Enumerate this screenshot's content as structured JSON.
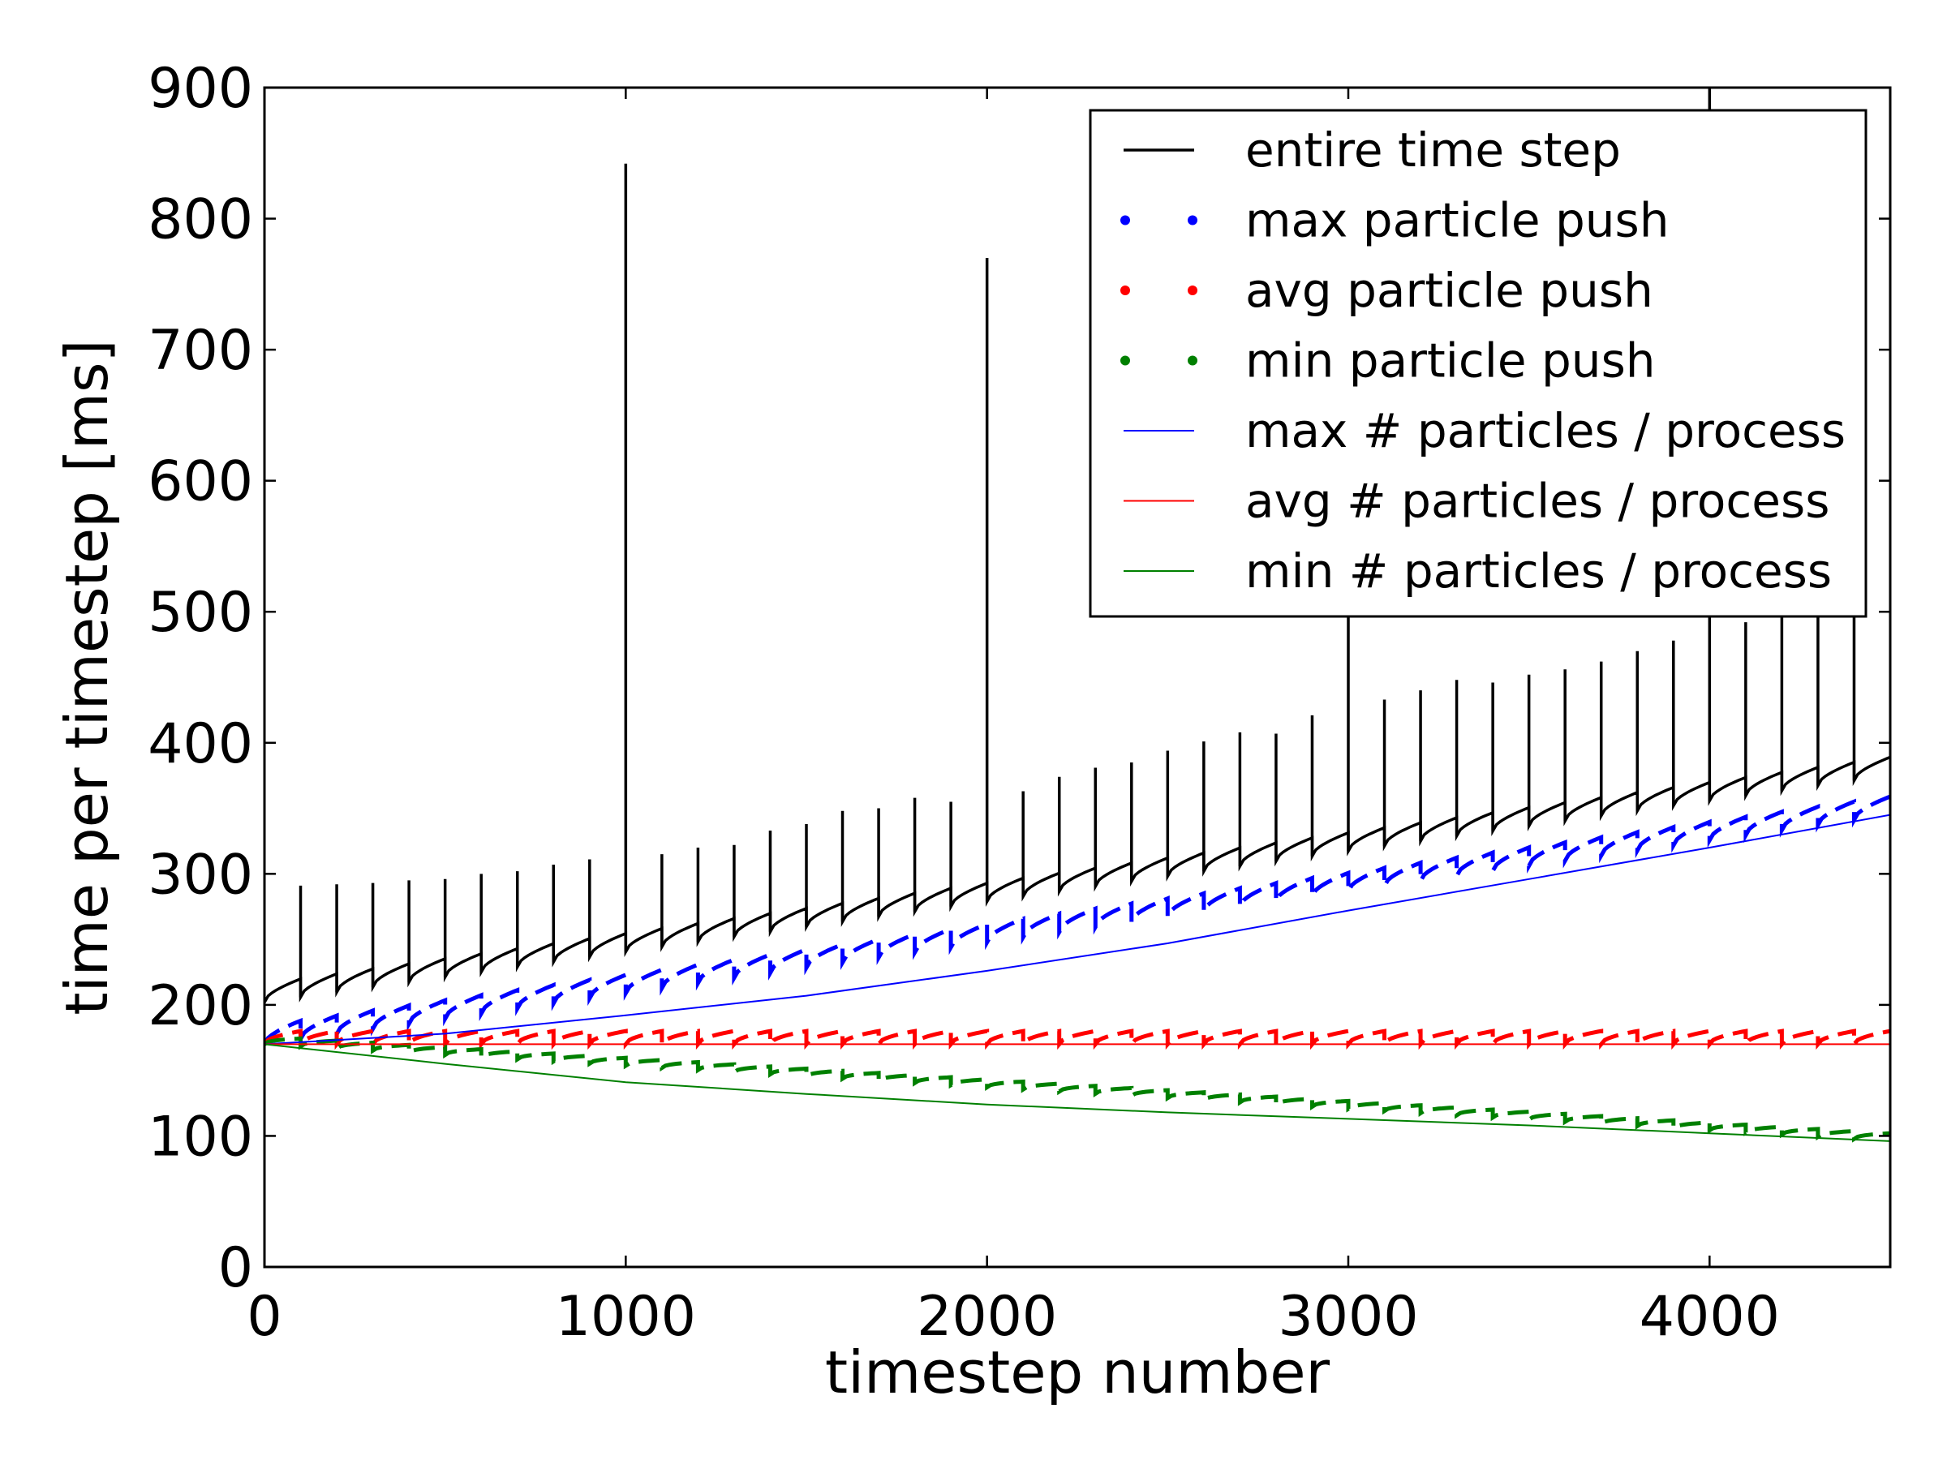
{
  "chart_data": {
    "type": "line",
    "title": "",
    "xlabel": "timestep number",
    "ylabel": "time per timestep [ms]",
    "xlim": [
      0,
      4500
    ],
    "ylim": [
      0,
      900
    ],
    "xticks": [
      0,
      1000,
      2000,
      3000,
      4000
    ],
    "yticks": [
      0,
      100,
      200,
      300,
      400,
      500,
      600,
      700,
      800,
      900
    ],
    "grid": false,
    "legend_position": "upper-right",
    "period": 100,
    "series": [
      {
        "name": "entire time step",
        "style": "solid",
        "color": "#000000",
        "sawtooth_start": [
          202,
          375
        ],
        "sawtooth_amplitude": 14,
        "spike_x": [
          100,
          200,
          300,
          400,
          500,
          600,
          700,
          800,
          900,
          1000,
          1100,
          1200,
          1300,
          1400,
          1500,
          1600,
          1700,
          1800,
          1900,
          2000,
          2100,
          2200,
          2300,
          2400,
          2500,
          2600,
          2700,
          2800,
          2900,
          3000,
          3100,
          3200,
          3300,
          3400,
          3500,
          3600,
          3700,
          3800,
          3900,
          4000,
          4100,
          4200,
          4300,
          4400
        ],
        "spike_y": [
          291,
          292,
          293,
          295,
          296,
          300,
          302,
          307,
          311,
          842,
          315,
          320,
          322,
          333,
          338,
          348,
          350,
          358,
          355,
          770,
          363,
          374,
          381,
          385,
          394,
          401,
          408,
          407,
          421,
          500,
          433,
          440,
          448,
          446,
          452,
          456,
          462,
          470,
          478,
          900,
          492,
          496,
          500,
          500
        ]
      },
      {
        "name": "max particle push",
        "style": "dotted",
        "color": "#0000ff",
        "sawtooth_start": [
          170,
          345
        ],
        "sawtooth_amplitude": 14
      },
      {
        "name": "avg particle push",
        "style": "dotted",
        "color": "#ff0000",
        "sawtooth_start": [
          170,
          170
        ],
        "sawtooth_amplitude": 10
      },
      {
        "name": "min particle push",
        "style": "dotted",
        "color": "#008000",
        "sawtooth_start": [
          170,
          96
        ],
        "sawtooth_amplitude": 6
      },
      {
        "name": "max # particles / process",
        "style": "thin",
        "color": "#0000ff",
        "x": [
          0,
          500,
          1000,
          1500,
          2000,
          2500,
          3000,
          3500,
          4000,
          4500
        ],
        "y": [
          170,
          178,
          192,
          207,
          226,
          247,
          272,
          296,
          320,
          345
        ]
      },
      {
        "name": "avg # particles / process",
        "style": "thin",
        "color": "#ff0000",
        "x": [
          0,
          4500
        ],
        "y": [
          170,
          170
        ]
      },
      {
        "name": "min # particles / process",
        "style": "thin",
        "color": "#008000",
        "x": [
          0,
          500,
          1000,
          1500,
          2000,
          2500,
          3000,
          3500,
          4000,
          4500
        ],
        "y": [
          170,
          155,
          141,
          132,
          124,
          118,
          113,
          108,
          102,
          96
        ]
      }
    ]
  }
}
